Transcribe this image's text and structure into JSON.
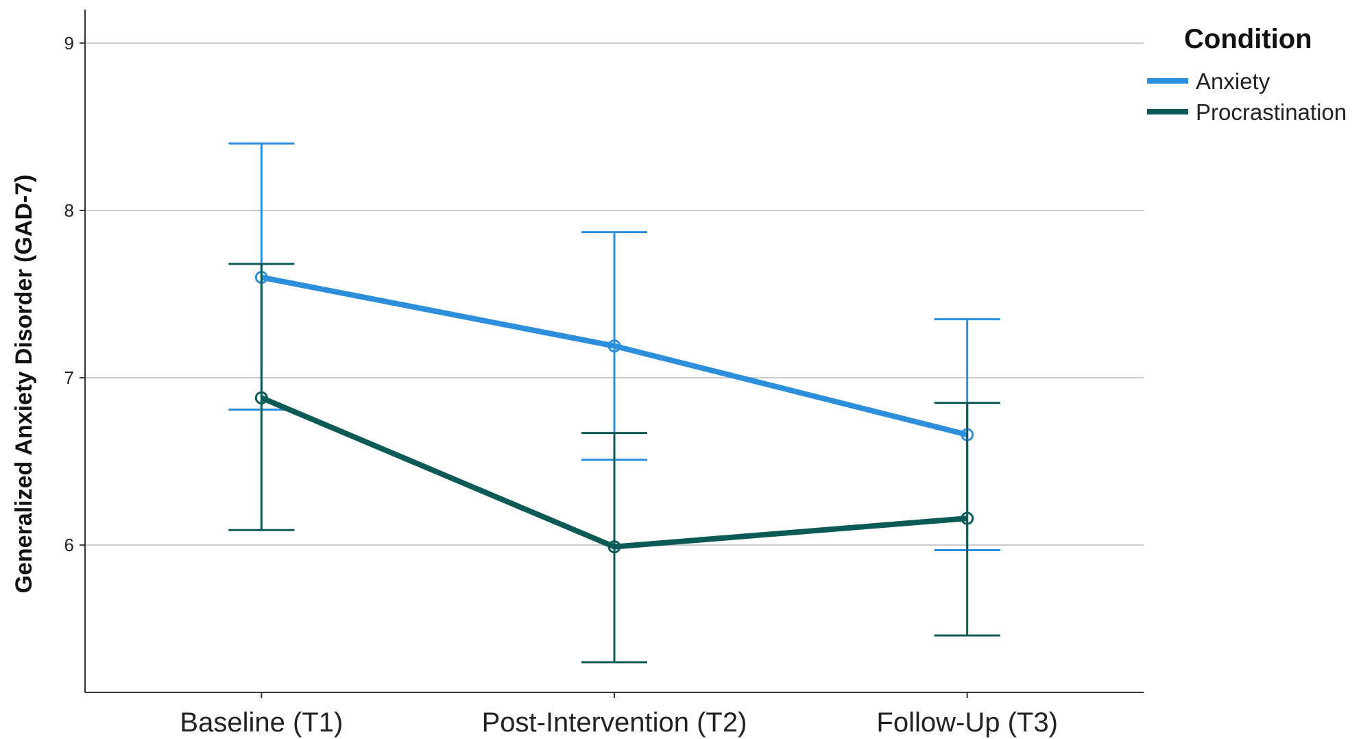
{
  "chart_data": {
    "type": "line",
    "title": "",
    "xlabel": "",
    "ylabel": "Generalized Anxiety Disorder (GAD-7)",
    "categories": [
      "Baseline (T1)",
      "Post-Intervention (T2)",
      "Follow-Up (T3)"
    ],
    "ylim": [
      5.12,
      9.2
    ],
    "yticks": [
      6,
      7,
      8,
      9
    ],
    "grid": true,
    "legend": {
      "title": "Condition",
      "position": "top-right"
    },
    "series": [
      {
        "name": "Anxiety",
        "color": "#2d8fdc",
        "values": [
          7.6,
          7.19,
          6.66
        ],
        "ci_low": [
          6.81,
          6.51,
          5.97
        ],
        "ci_high": [
          8.4,
          7.87,
          7.35
        ]
      },
      {
        "name": "Procrastination",
        "color": "#0c5a56",
        "values": [
          6.88,
          5.99,
          6.16
        ],
        "ci_low": [
          6.09,
          5.3,
          5.46
        ],
        "ci_high": [
          7.68,
          6.67,
          6.85
        ]
      }
    ]
  }
}
